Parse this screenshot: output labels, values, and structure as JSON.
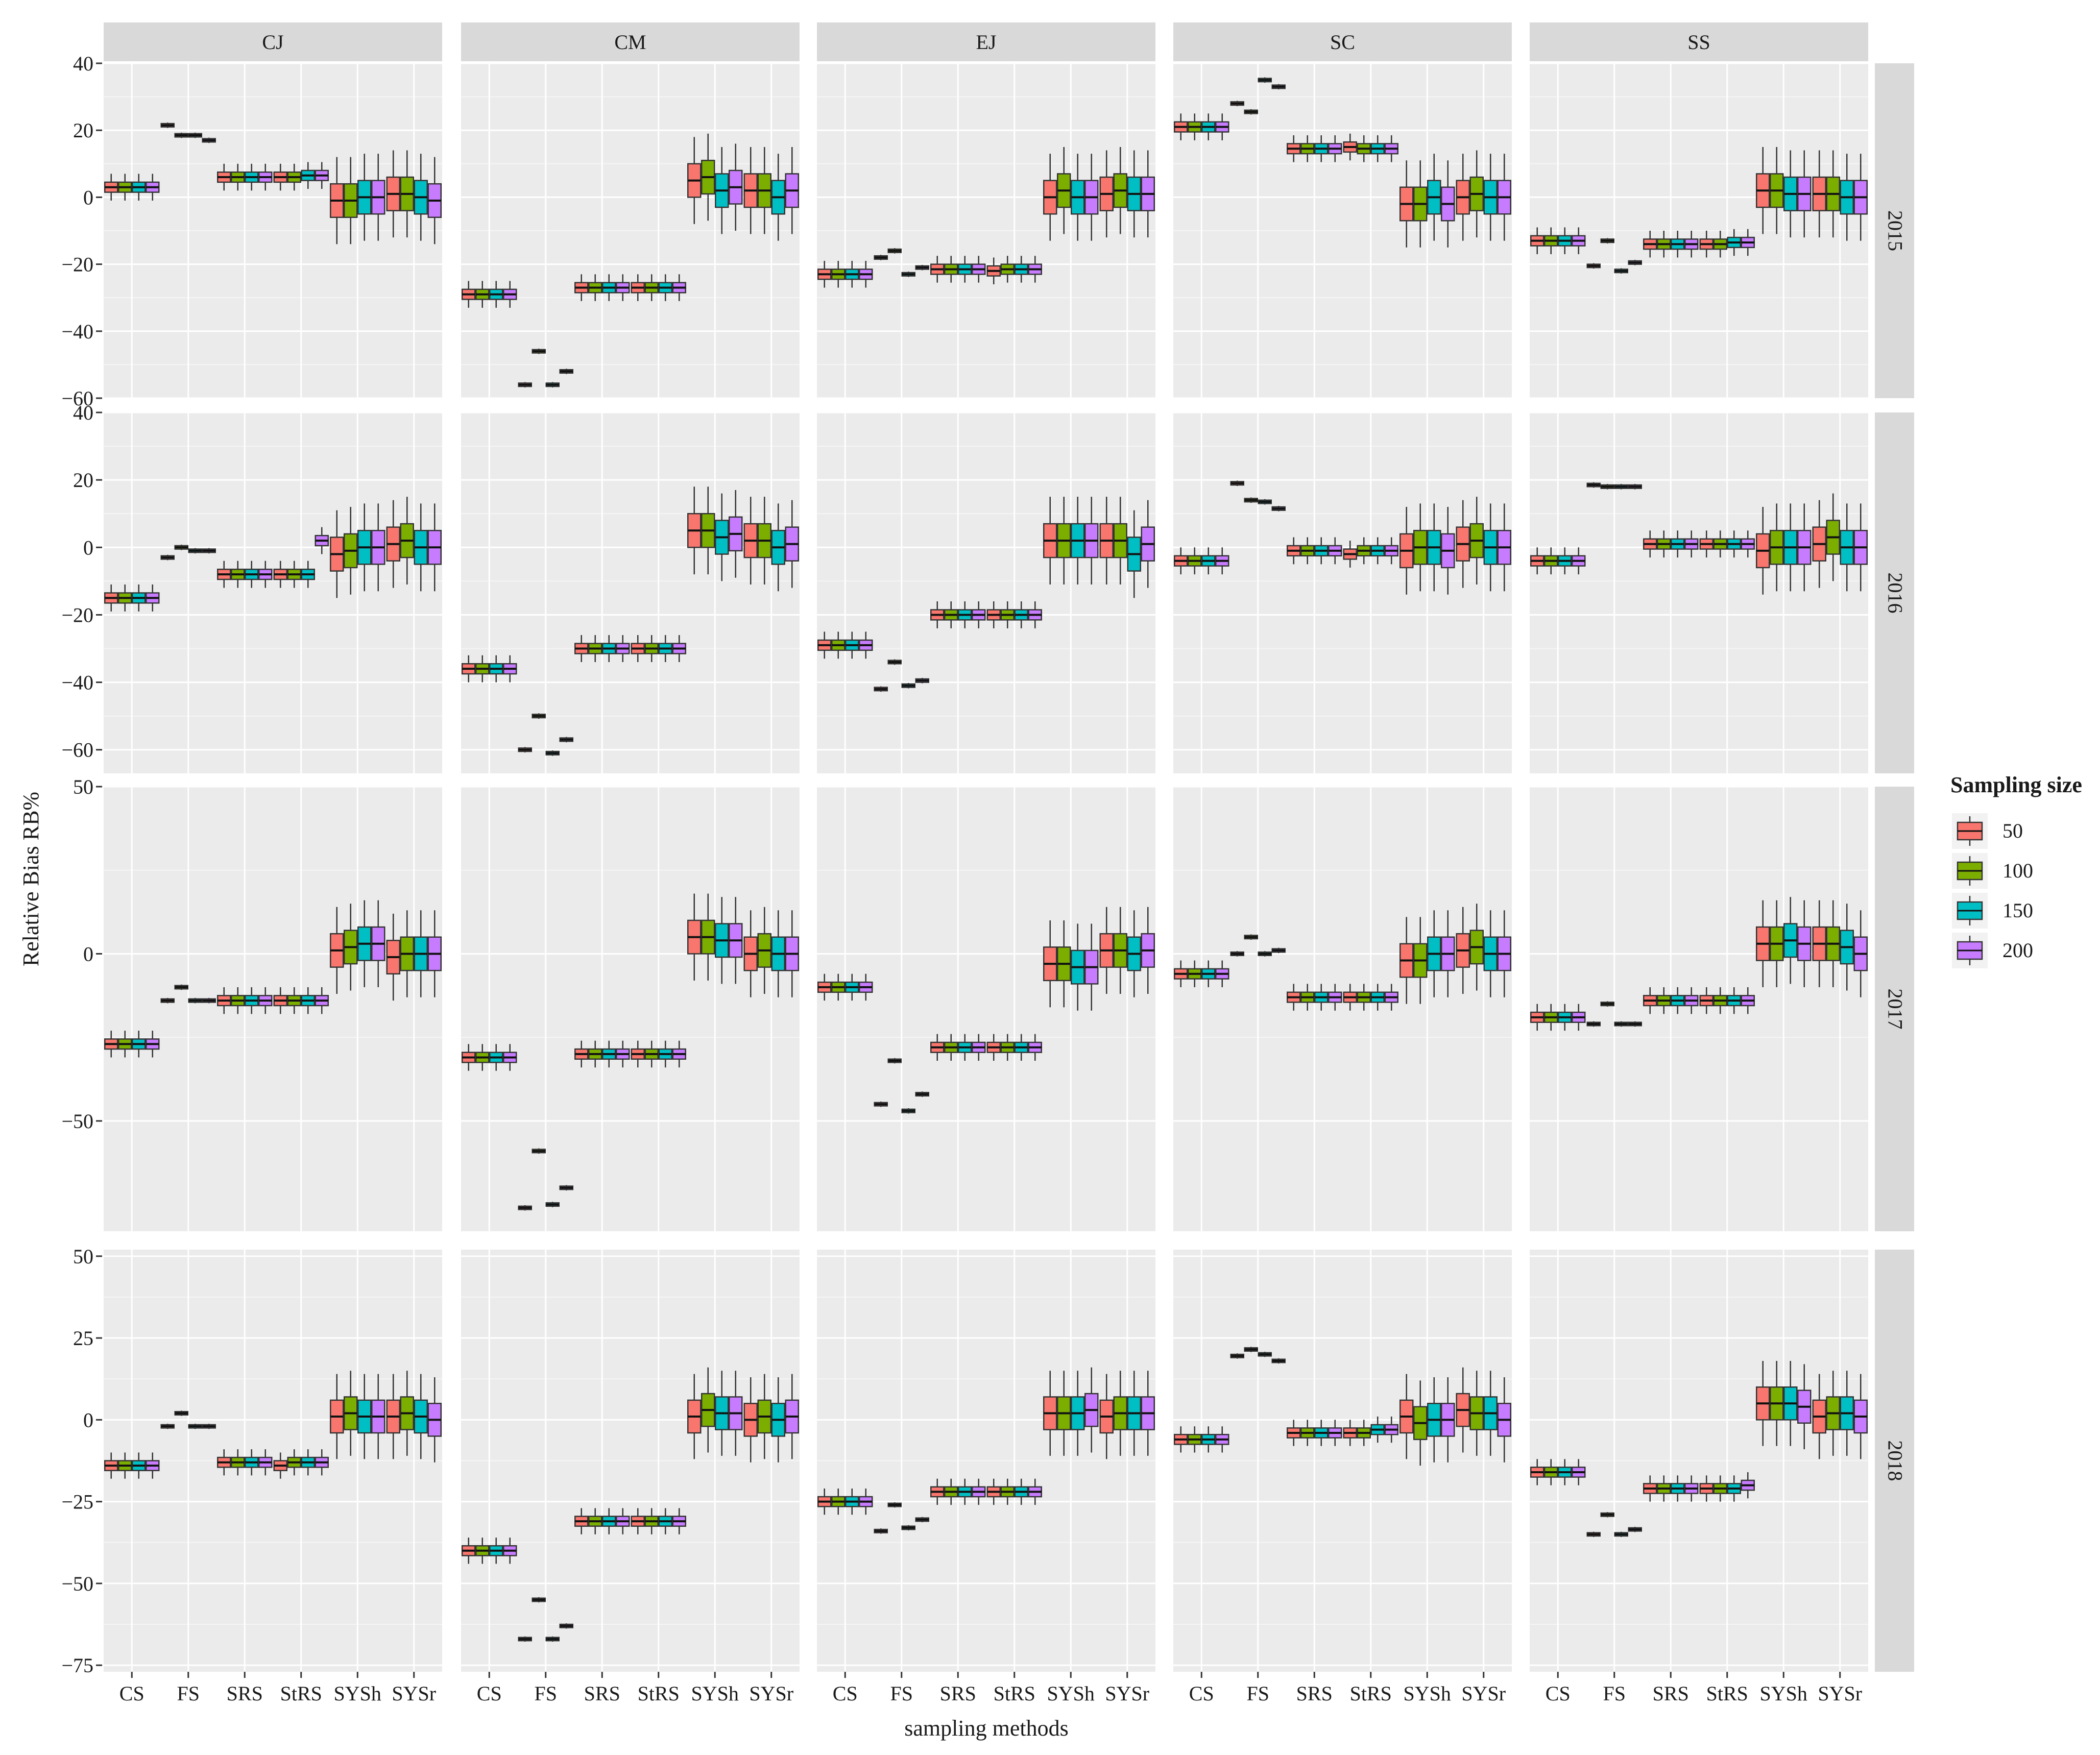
{
  "chart_data": {
    "type": "boxplot",
    "title": "",
    "xlabel": "sampling methods",
    "ylabel": "Relative Bias RB%",
    "categories": [
      "CS",
      "FS",
      "SRS",
      "StRS",
      "SYSh",
      "SYSr"
    ],
    "facet_columns": [
      "CJ",
      "CM",
      "EJ",
      "SC",
      "SS"
    ],
    "facet_rows": [
      "2015",
      "2016",
      "2017",
      "2018"
    ],
    "legend": {
      "title": "Sampling size",
      "placement": "right",
      "entries": [
        {
          "label": "50",
          "color": "#F8766D"
        },
        {
          "label": "100",
          "color": "#7CAE00"
        },
        {
          "label": "150",
          "color": "#00BFC4"
        },
        {
          "label": "200",
          "color": "#C77CFF"
        }
      ]
    },
    "rows": [
      {
        "year": "2015",
        "ylim": [
          -60,
          40
        ],
        "yticks": [
          40,
          20,
          0,
          -20,
          -40,
          -60
        ],
        "ytick_labels": [
          "40",
          "20",
          "0",
          "−20",
          "−40",
          "−60"
        ],
        "medians": {
          "CJ": [
            [
              3,
              3,
              3,
              3
            ],
            [
              21.5,
              18.5,
              18.5,
              17
            ],
            [
              6,
              6,
              6,
              6
            ],
            [
              6,
              6,
              6.5,
              6.5
            ],
            [
              -1,
              -1,
              0,
              0
            ],
            [
              1,
              1,
              0,
              -1
            ]
          ],
          "CM": [
            [
              -29,
              -29,
              -29,
              -29
            ],
            [
              -56,
              -46,
              -56,
              -52
            ],
            [
              -27,
              -27,
              -27,
              -27
            ],
            [
              -27,
              -27,
              -27,
              -27
            ],
            [
              5,
              6,
              2,
              3
            ],
            [
              2,
              2,
              0,
              2
            ]
          ],
          "EJ": [
            [
              -23,
              -23,
              -23,
              -23
            ],
            [
              -18,
              -16,
              -23,
              -21
            ],
            [
              -21.5,
              -21.5,
              -21.5,
              -21.5
            ],
            [
              -22,
              -21.5,
              -21.5,
              -21.5
            ],
            [
              0,
              2,
              0,
              0
            ],
            [
              1,
              2,
              1,
              1
            ]
          ],
          "SC": [
            [
              21,
              21,
              21,
              21
            ],
            [
              28,
              25.5,
              35,
              33
            ],
            [
              14.5,
              14.5,
              14.5,
              14.5
            ],
            [
              15,
              14.5,
              14.5,
              14.5
            ],
            [
              -2,
              -2,
              0,
              -2
            ],
            [
              0,
              1,
              0,
              0
            ]
          ],
          "SS": [
            [
              -13,
              -13,
              -13,
              -13
            ],
            [
              -20.5,
              -13,
              -22,
              -19.5
            ],
            [
              -14,
              -14,
              -14,
              -14
            ],
            [
              -14,
              -14,
              -13.5,
              -13.5
            ],
            [
              2,
              2,
              1,
              1
            ],
            [
              1,
              1,
              0,
              0
            ]
          ]
        }
      },
      {
        "year": "2016",
        "ylim": [
          -67,
          40
        ],
        "yticks": [
          40,
          20,
          0,
          -20,
          -40,
          -60
        ],
        "ytick_labels": [
          "40",
          "20",
          "0",
          "−20",
          "−40",
          "−60"
        ],
        "medians": {
          "CJ": [
            [
              -15,
              -15,
              -15,
              -15
            ],
            [
              -3,
              0,
              -1,
              -1
            ],
            [
              -8,
              -8,
              -8,
              -8
            ],
            [
              -8,
              -8,
              -8,
              2
            ],
            [
              -2,
              -1,
              0,
              0
            ],
            [
              1,
              2,
              0,
              0
            ]
          ],
          "CM": [
            [
              -36,
              -36,
              -36,
              -36
            ],
            [
              -60,
              -50,
              -61,
              -57
            ],
            [
              -30,
              -30,
              -30,
              -30
            ],
            [
              -30,
              -30,
              -30,
              -30
            ],
            [
              5,
              5,
              3,
              4
            ],
            [
              2,
              2,
              0,
              1
            ]
          ],
          "EJ": [
            [
              -29,
              -29,
              -29,
              -29
            ],
            [
              -42,
              -34,
              -41,
              -39.5
            ],
            [
              -20,
              -20,
              -20,
              -20
            ],
            [
              -20,
              -20,
              -20,
              -20
            ],
            [
              2,
              2,
              2,
              2
            ],
            [
              2,
              2,
              -2,
              1
            ]
          ],
          "SC": [
            [
              -4,
              -4,
              -4,
              -4
            ],
            [
              19,
              14,
              13.5,
              11.5
            ],
            [
              -1,
              -1,
              -1,
              -1
            ],
            [
              -2,
              -1,
              -1,
              -1
            ],
            [
              -1,
              0,
              0,
              -1
            ],
            [
              1,
              2,
              0,
              0
            ]
          ],
          "SS": [
            [
              -4,
              -4,
              -4,
              -4
            ],
            [
              18.5,
              18,
              18,
              18
            ],
            [
              1,
              1,
              1,
              1
            ],
            [
              1,
              1,
              1,
              1
            ],
            [
              -1,
              0,
              0,
              0
            ],
            [
              1,
              3,
              0,
              0
            ]
          ]
        }
      },
      {
        "year": "2017",
        "ylim": [
          -83,
          50
        ],
        "yticks": [
          50,
          0,
          -50
        ],
        "ytick_labels": [
          "50",
          "0",
          "−50"
        ],
        "medians": {
          "CJ": [
            [
              -27,
              -27,
              -27,
              -27
            ],
            [
              -14,
              -10,
              -14,
              -14
            ],
            [
              -14,
              -14,
              -14,
              -14
            ],
            [
              -14,
              -14,
              -14,
              -14
            ],
            [
              1,
              2,
              3,
              3
            ],
            [
              -1,
              0,
              0,
              0
            ]
          ],
          "CM": [
            [
              -31,
              -31,
              -31,
              -31
            ],
            [
              -76,
              -59,
              -75,
              -70
            ],
            [
              -30,
              -30,
              -30,
              -30
            ],
            [
              -30,
              -30,
              -30,
              -30
            ],
            [
              5,
              5,
              4,
              4
            ],
            [
              0,
              1,
              0,
              0
            ]
          ],
          "EJ": [
            [
              -10,
              -10,
              -10,
              -10
            ],
            [
              -45,
              -32,
              -47,
              -42
            ],
            [
              -28,
              -28,
              -28,
              -28
            ],
            [
              -28,
              -28,
              -28,
              -28
            ],
            [
              -3,
              -3,
              -4,
              -4
            ],
            [
              1,
              1,
              0,
              1
            ]
          ],
          "SC": [
            [
              -6,
              -6,
              -6,
              -6
            ],
            [
              0,
              5,
              0,
              1
            ],
            [
              -13,
              -13,
              -13,
              -13
            ],
            [
              -13,
              -13,
              -13,
              -13
            ],
            [
              -2,
              -2,
              0,
              0
            ],
            [
              1,
              2,
              0,
              0
            ]
          ],
          "SS": [
            [
              -19,
              -19,
              -19,
              -19
            ],
            [
              -21,
              -15,
              -21,
              -21
            ],
            [
              -14,
              -14,
              -14,
              -14
            ],
            [
              -14,
              -14,
              -14,
              -14
            ],
            [
              3,
              3,
              4,
              3
            ],
            [
              3,
              3,
              2,
              0
            ]
          ]
        }
      },
      {
        "year": "2018",
        "ylim": [
          -77,
          52
        ],
        "yticks": [
          50,
          25,
          0,
          -25,
          -50,
          -75
        ],
        "ytick_labels": [
          "50",
          "25",
          "0",
          "−25",
          "−50",
          "−75"
        ],
        "medians": {
          "CJ": [
            [
              -14,
              -14,
              -14,
              -14
            ],
            [
              -2,
              2,
              -2,
              -2
            ],
            [
              -13,
              -13,
              -13,
              -13
            ],
            [
              -14,
              -13,
              -13,
              -13
            ],
            [
              1,
              2,
              1,
              1
            ],
            [
              1,
              2,
              1,
              0
            ]
          ],
          "CM": [
            [
              -40,
              -40,
              -40,
              -40
            ],
            [
              -67,
              -55,
              -67,
              -63
            ],
            [
              -31,
              -31,
              -31,
              -31
            ],
            [
              -31,
              -31,
              -31,
              -31
            ],
            [
              1,
              3,
              2,
              2
            ],
            [
              0,
              1,
              0,
              1
            ]
          ],
          "EJ": [
            [
              -25,
              -25,
              -25,
              -25
            ],
            [
              -34,
              -26,
              -33,
              -30.5
            ],
            [
              -22,
              -22,
              -22,
              -22
            ],
            [
              -22,
              -22,
              -22,
              -22
            ],
            [
              2,
              2,
              2,
              3
            ],
            [
              1,
              2,
              2,
              2
            ]
          ],
          "SC": [
            [
              -6,
              -6,
              -6,
              -6
            ],
            [
              19.5,
              21.5,
              20,
              18
            ],
            [
              -4,
              -4,
              -4,
              -4
            ],
            [
              -4,
              -4,
              -3,
              -3
            ],
            [
              1,
              -1,
              0,
              0
            ],
            [
              3,
              2,
              2,
              0
            ]
          ],
          "SS": [
            [
              -16,
              -16,
              -16,
              -16
            ],
            [
              -35,
              -29,
              -35,
              -33.5
            ],
            [
              -21,
              -21,
              -21,
              -21
            ],
            [
              -21,
              -21,
              -21,
              -20
            ],
            [
              5,
              5,
              5,
              4
            ],
            [
              1,
              2,
              2,
              1
            ]
          ]
        }
      }
    ]
  }
}
